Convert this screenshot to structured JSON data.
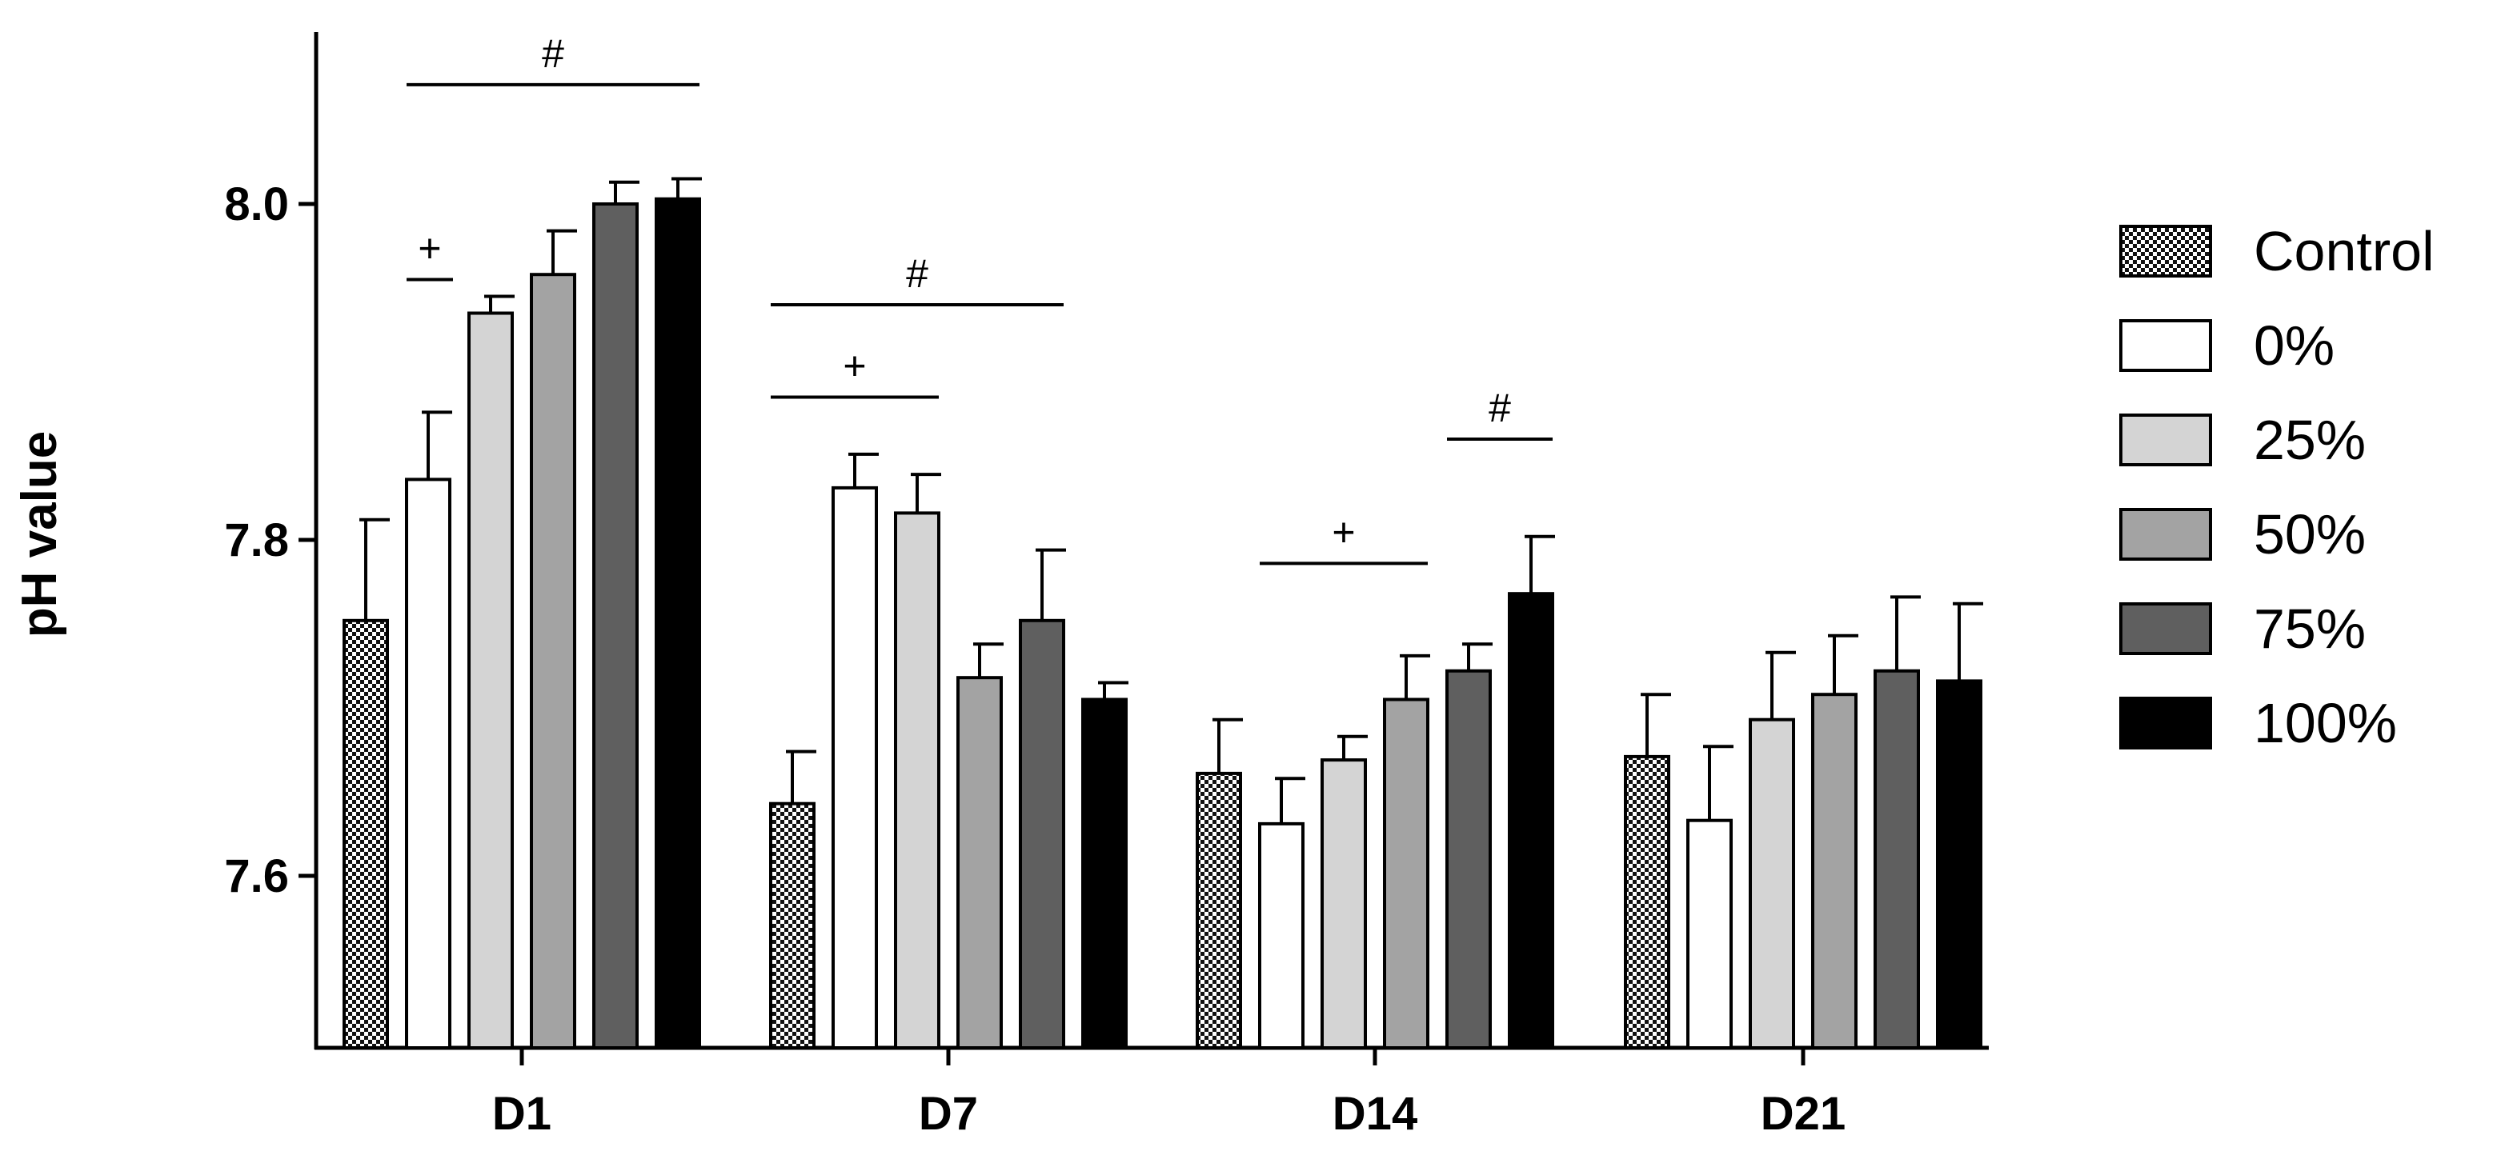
{
  "chart_data": {
    "type": "bar",
    "title": "",
    "xlabel": "",
    "ylabel": "pH value",
    "ylim": [
      7.5,
      8.1
    ],
    "yticks": [
      7.6,
      7.8,
      8.0
    ],
    "ytick_labels": [
      "7.6",
      "7.8",
      "8.0"
    ],
    "grid": false,
    "legend_position": "right",
    "categories": [
      "D1",
      "D7",
      "D14",
      "D21"
    ],
    "series": [
      {
        "name": "Control",
        "fill": "checker",
        "values": [
          7.752,
          7.643,
          7.661,
          7.671
        ],
        "errors": [
          0.06,
          0.031,
          0.032,
          0.037
        ]
      },
      {
        "name": "0%",
        "fill": "#ffffff",
        "values": [
          7.836,
          7.831,
          7.631,
          7.633
        ],
        "errors": [
          0.04,
          0.02,
          0.027,
          0.044
        ]
      },
      {
        "name": "25%",
        "fill": "#d4d4d4",
        "values": [
          7.935,
          7.816,
          7.669,
          7.693
        ],
        "errors": [
          0.01,
          0.023,
          0.014,
          0.04
        ]
      },
      {
        "name": "50%",
        "fill": "#a3a3a3",
        "values": [
          7.958,
          7.718,
          7.705,
          7.708
        ],
        "errors": [
          0.026,
          0.02,
          0.026,
          0.035
        ]
      },
      {
        "name": "75%",
        "fill": "#5f5f5f",
        "values": [
          8.0,
          7.752,
          7.722,
          7.722
        ],
        "errors": [
          0.013,
          0.042,
          0.016,
          0.044
        ]
      },
      {
        "name": "100%",
        "fill": "#000000",
        "values": [
          8.003,
          7.705,
          7.768,
          7.716
        ],
        "errors": [
          0.012,
          0.01,
          0.034,
          0.046
        ]
      }
    ],
    "significance": [
      {
        "label": "#",
        "group": "D1",
        "from_series": 1,
        "to_series": 5,
        "level": 8.071
      },
      {
        "label": "+",
        "group": "D1",
        "from_series": 1,
        "to_series": 1,
        "level": 7.955
      },
      {
        "label": "#",
        "group": "D7",
        "from_series": 0,
        "to_series": 4,
        "level": 7.94
      },
      {
        "label": "+",
        "group": "D7",
        "from_series": 0,
        "to_series": 2,
        "level": 7.885
      },
      {
        "label": "+",
        "group": "D14",
        "from_series": 1,
        "to_series": 3,
        "level": 7.786
      },
      {
        "label": "#",
        "group": "D14",
        "from_series": 4,
        "to_series": 5,
        "level": 7.86
      }
    ]
  }
}
